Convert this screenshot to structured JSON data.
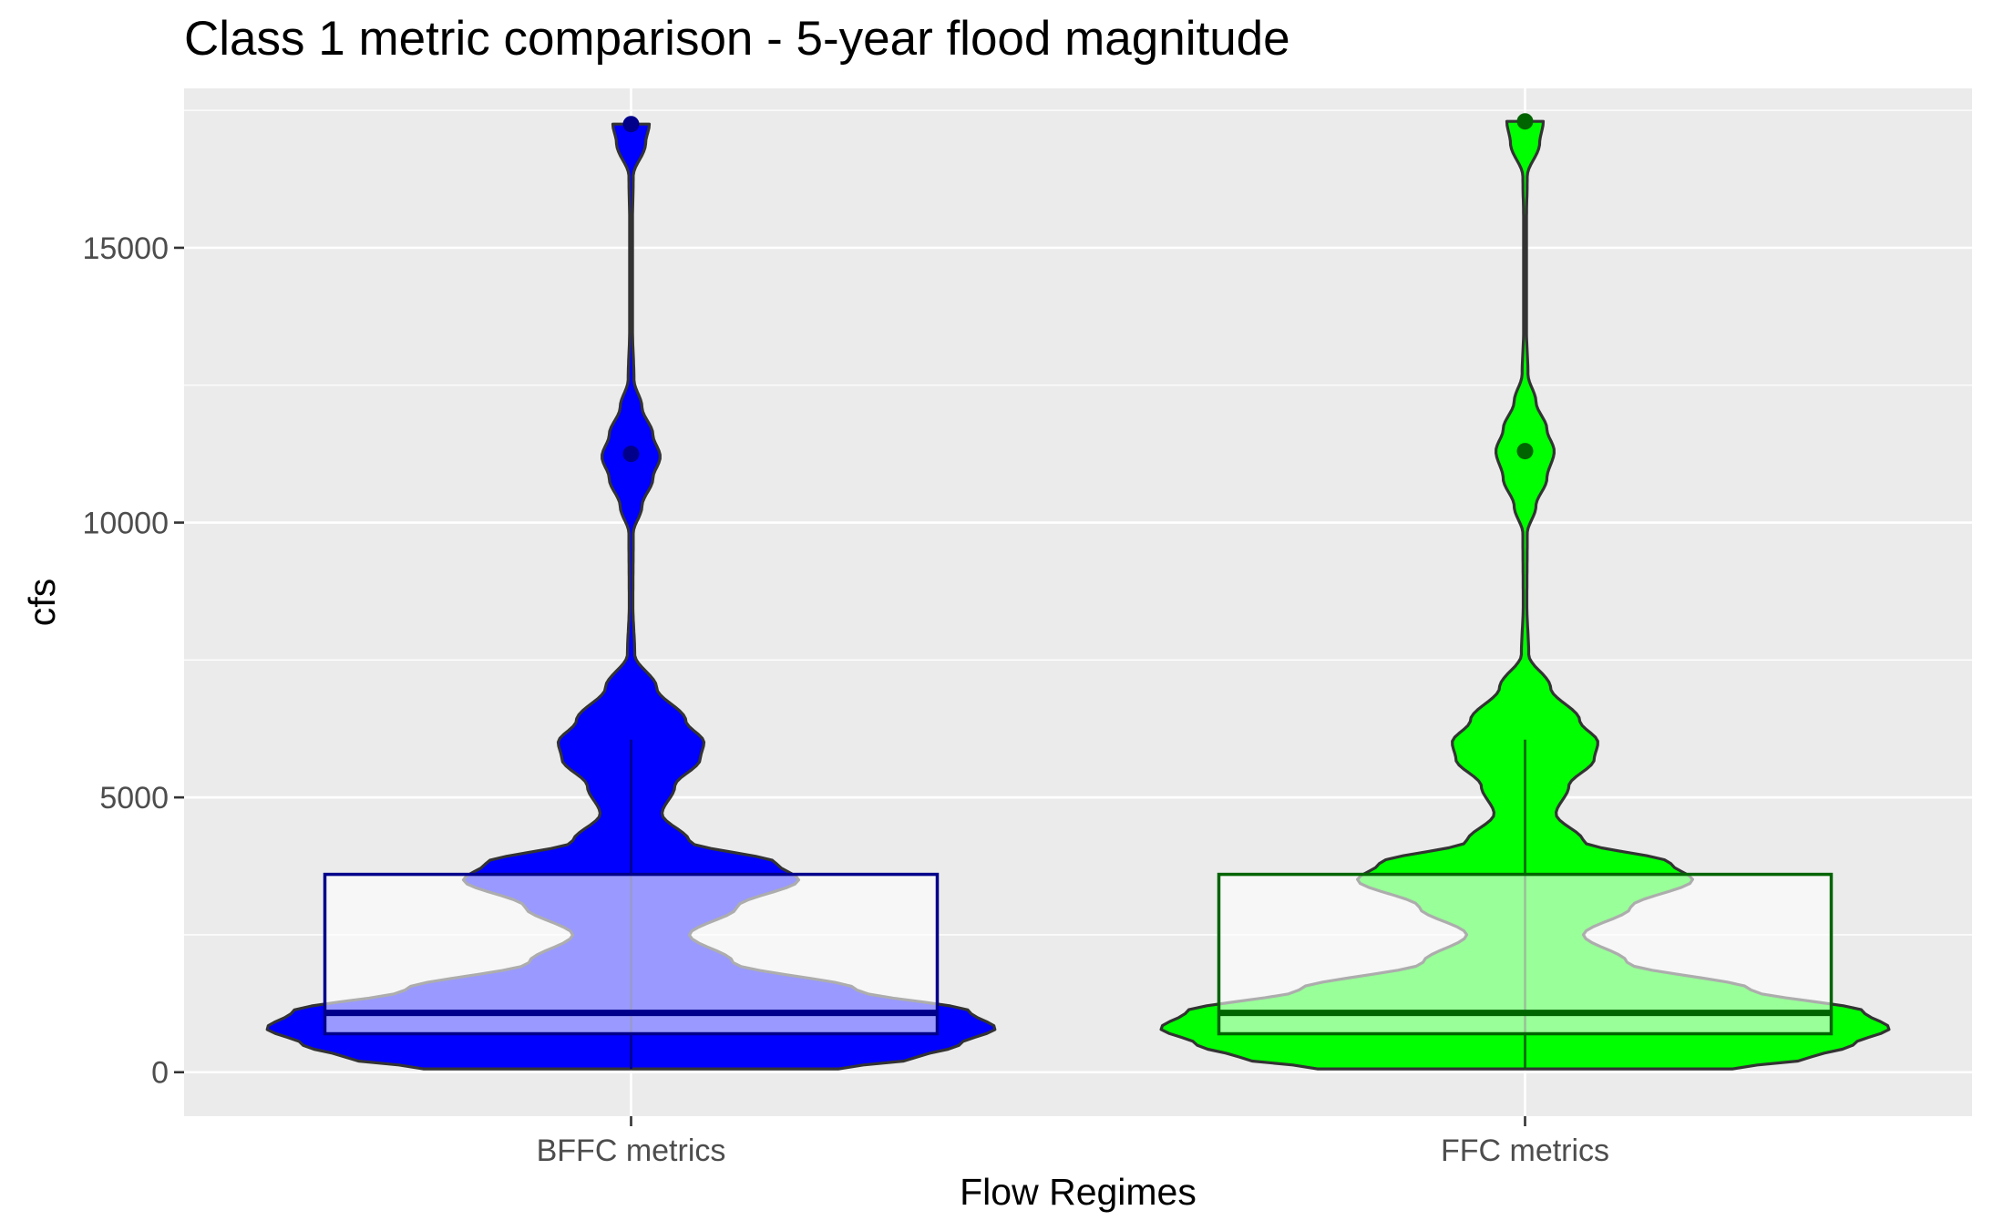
{
  "chart_data": {
    "type": "violin",
    "title": "Class 1 metric comparison - 5-year flood magnitude",
    "xlabel": "Flow Regimes",
    "ylabel": "cfs",
    "categories": [
      "BFFC metrics",
      "FFC metrics"
    ],
    "ylim": [
      -800,
      17900
    ],
    "yticks": [
      0,
      5000,
      10000,
      15000
    ],
    "ytick_labels": [
      "0",
      "5000",
      "10000",
      "15000"
    ],
    "grid": true,
    "legend": "none",
    "colors": {
      "panel_bg": "#ebebeb",
      "grid": "#ffffff",
      "outline": "#333333"
    },
    "series": [
      {
        "category": "BFFC metrics",
        "fill": "#0000ff",
        "box_border": "#00008b",
        "point_color": "#00008b",
        "violin_range": [
          60,
          17250
        ],
        "density": [
          [
            60,
            0.57
          ],
          [
            250,
            0.78
          ],
          [
            500,
            0.9
          ],
          [
            800,
            1.0
          ],
          [
            1100,
            0.93
          ],
          [
            1500,
            0.62
          ],
          [
            2000,
            0.28
          ],
          [
            2500,
            0.16
          ],
          [
            3000,
            0.29
          ],
          [
            3500,
            0.46
          ],
          [
            3800,
            0.4
          ],
          [
            4200,
            0.16
          ],
          [
            4700,
            0.085
          ],
          [
            5200,
            0.12
          ],
          [
            5700,
            0.19
          ],
          [
            6000,
            0.2
          ],
          [
            6400,
            0.15
          ],
          [
            7000,
            0.07
          ],
          [
            7600,
            0.01
          ],
          [
            8500,
            0.005
          ],
          [
            9800,
            0.006
          ],
          [
            10300,
            0.03
          ],
          [
            10800,
            0.06
          ],
          [
            11200,
            0.08
          ],
          [
            11600,
            0.06
          ],
          [
            12100,
            0.03
          ],
          [
            12600,
            0.008
          ],
          [
            13500,
            0.004
          ],
          [
            15500,
            0.004
          ],
          [
            16300,
            0.006
          ],
          [
            16900,
            0.04
          ],
          [
            17250,
            0.05
          ]
        ],
        "box": {
          "q1": 700,
          "median": 1080,
          "q3": 3600,
          "whisker_low": 60,
          "whisker_high": 6050
        },
        "outliers": [
          11250,
          17250
        ]
      },
      {
        "category": "FFC metrics",
        "fill": "#00ff00",
        "box_border": "#006400",
        "point_color": "#006400",
        "violin_range": [
          60,
          17300
        ],
        "density": [
          [
            60,
            0.57
          ],
          [
            250,
            0.78
          ],
          [
            500,
            0.9
          ],
          [
            800,
            1.0
          ],
          [
            1100,
            0.93
          ],
          [
            1500,
            0.62
          ],
          [
            2000,
            0.28
          ],
          [
            2500,
            0.16
          ],
          [
            3000,
            0.29
          ],
          [
            3500,
            0.46
          ],
          [
            3800,
            0.4
          ],
          [
            4200,
            0.16
          ],
          [
            4700,
            0.085
          ],
          [
            5200,
            0.12
          ],
          [
            5700,
            0.19
          ],
          [
            6000,
            0.2
          ],
          [
            6400,
            0.15
          ],
          [
            7000,
            0.07
          ],
          [
            7600,
            0.01
          ],
          [
            8500,
            0.005
          ],
          [
            9800,
            0.006
          ],
          [
            10300,
            0.03
          ],
          [
            10800,
            0.06
          ],
          [
            11300,
            0.08
          ],
          [
            11700,
            0.06
          ],
          [
            12200,
            0.03
          ],
          [
            12700,
            0.008
          ],
          [
            13500,
            0.004
          ],
          [
            15500,
            0.004
          ],
          [
            16300,
            0.006
          ],
          [
            16900,
            0.04
          ],
          [
            17300,
            0.05
          ]
        ],
        "box": {
          "q1": 700,
          "median": 1080,
          "q3": 3600,
          "whisker_low": 60,
          "whisker_high": 6050
        },
        "outliers": [
          11300,
          17300
        ]
      }
    ]
  }
}
